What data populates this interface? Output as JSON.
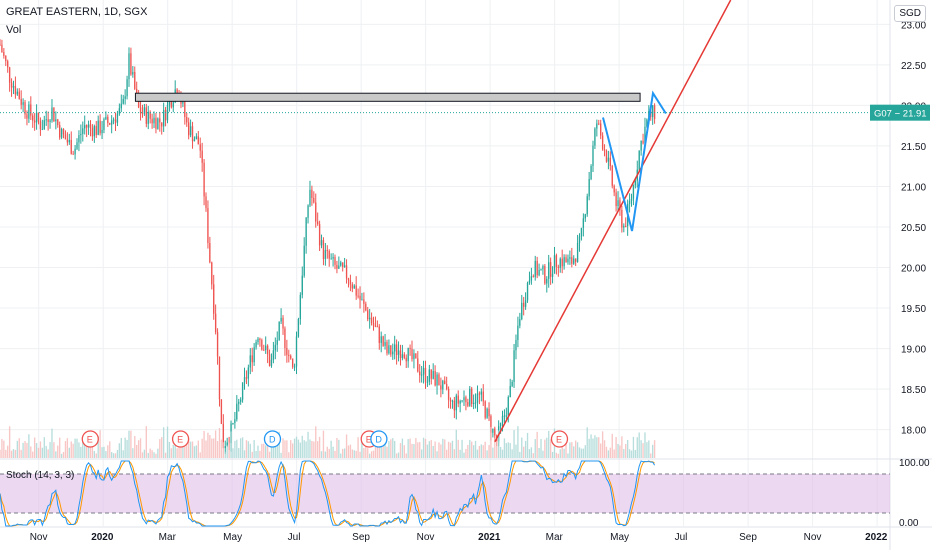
{
  "header": {
    "title": "GREAT EASTERN, 1D, SGX",
    "vol_label": "Vol",
    "currency": "SGD"
  },
  "price_tag": {
    "label": "G07 − 21.91",
    "color": "#26a69a"
  },
  "colors": {
    "up": "#26a69a",
    "down": "#ef5350",
    "trendline": "#e53935",
    "pattern": "#2196f3",
    "stoch_k": "#2196f3",
    "stoch_d": "#ff9800",
    "stoch_band": "#e1bee7"
  },
  "stoch": {
    "label": "Stoch (14, 3, 3)",
    "upper": 80,
    "lower": 20,
    "ticks": [
      "100.00",
      "0.00"
    ]
  },
  "event_markers": [
    {
      "letter": "E",
      "month": 2.8,
      "color": "#ef5350"
    },
    {
      "letter": "E",
      "month": 5.6,
      "color": "#ef5350"
    },
    {
      "letter": "D",
      "month": 8.45,
      "color": "#2196f3"
    },
    {
      "letter": "E",
      "month": 11.45,
      "color": "#ef5350"
    },
    {
      "letter": "D",
      "month": 11.75,
      "color": "#2196f3"
    },
    {
      "letter": "E",
      "month": 17.35,
      "color": "#ef5350"
    }
  ],
  "chart_data": {
    "type": "candlestick",
    "title": "GREAT EASTERN, 1D, SGX",
    "x_ticks": [
      "Nov",
      "2020",
      "Mar",
      "May",
      "Jul",
      "Sep",
      "Nov",
      "2021",
      "Mar",
      "May",
      "Jul",
      "Sep",
      "Nov",
      "2022"
    ],
    "y_ticks": [
      "23.00",
      "22.50",
      "22.00",
      "21.50",
      "21.00",
      "20.50",
      "20.00",
      "19.50",
      "19.00",
      "18.50",
      "18.00"
    ],
    "ylim": [
      17.65,
      23.3
    ],
    "xlim_months": [
      0,
      27.6
    ],
    "last_price": 21.91,
    "close_path": [
      [
        0,
        22.75
      ],
      [
        0.3,
        22.35
      ],
      [
        0.8,
        21.95
      ],
      [
        1.3,
        21.75
      ],
      [
        1.6,
        21.95
      ],
      [
        1.9,
        21.65
      ],
      [
        2.3,
        21.45
      ],
      [
        2.6,
        21.75
      ],
      [
        3.0,
        21.7
      ],
      [
        3.4,
        21.8
      ],
      [
        3.8,
        21.95
      ],
      [
        4.0,
        22.55
      ],
      [
        4.3,
        21.95
      ],
      [
        4.6,
        21.85
      ],
      [
        5.0,
        21.8
      ],
      [
        5.5,
        22.25
      ],
      [
        5.8,
        21.75
      ],
      [
        6.2,
        21.5
      ],
      [
        6.4,
        20.6
      ],
      [
        6.7,
        19.2
      ],
      [
        6.9,
        17.8
      ],
      [
        7.2,
        18.0
      ],
      [
        7.6,
        18.6
      ],
      [
        8.0,
        19.2
      ],
      [
        8.4,
        18.8
      ],
      [
        8.7,
        19.3
      ],
      [
        9.1,
        18.7
      ],
      [
        9.6,
        21.0
      ],
      [
        10.0,
        20.2
      ],
      [
        10.4,
        20.0
      ],
      [
        10.8,
        19.9
      ],
      [
        11.3,
        19.5
      ],
      [
        11.7,
        19.2
      ],
      [
        12.0,
        18.95
      ],
      [
        12.5,
        19.0
      ],
      [
        13.1,
        18.7
      ],
      [
        13.6,
        18.6
      ],
      [
        14.0,
        18.3
      ],
      [
        14.5,
        18.4
      ],
      [
        14.9,
        18.4
      ],
      [
        15.4,
        17.85
      ],
      [
        15.8,
        18.4
      ],
      [
        16.1,
        19.4
      ],
      [
        16.5,
        20.0
      ],
      [
        16.9,
        19.9
      ],
      [
        17.3,
        20.1
      ],
      [
        17.7,
        20.05
      ],
      [
        18.0,
        20.3
      ],
      [
        18.2,
        20.9
      ],
      [
        18.5,
        21.8
      ],
      [
        18.8,
        21.4
      ],
      [
        19.1,
        20.8
      ],
      [
        19.35,
        20.5
      ],
      [
        19.6,
        20.9
      ],
      [
        19.85,
        21.5
      ],
      [
        20.1,
        21.85
      ],
      [
        20.3,
        21.91
      ]
    ],
    "resistance_zone": {
      "x0": 4.2,
      "x1": 19.85,
      "y0": 22.05,
      "y1": 22.15
    },
    "trendline": {
      "x0": 15.35,
      "y0": 17.85,
      "x1": 21.05,
      "y1": 22.1
    },
    "pattern_path": [
      [
        18.7,
        21.85
      ],
      [
        19.6,
        20.45
      ],
      [
        20.25,
        22.15
      ],
      [
        20.65,
        21.9
      ]
    ],
    "volume_note": "volume histogram in the lower band of the price pane"
  }
}
